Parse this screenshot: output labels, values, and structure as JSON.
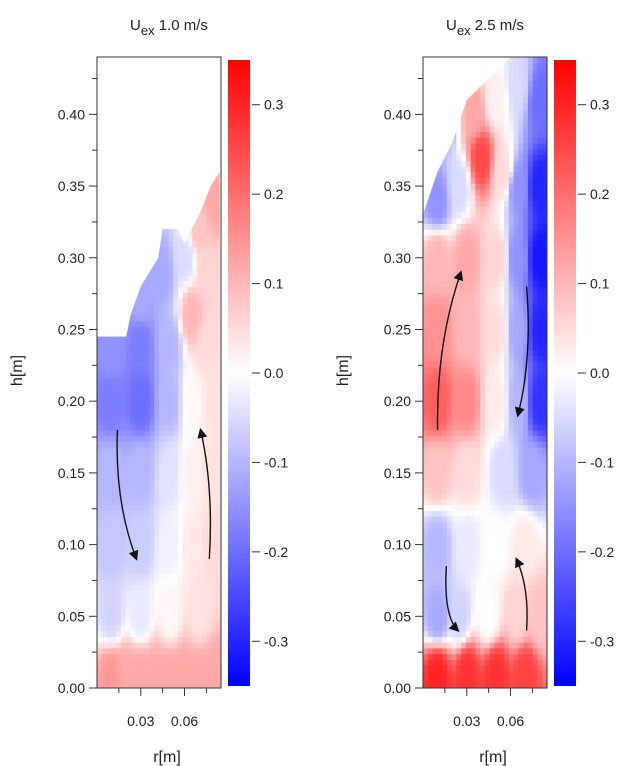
{
  "chart_data": [
    {
      "type": "heatmap",
      "title_main": "U",
      "title_sub": "ex",
      "title_rest": " 1.0 m/s",
      "xlabel": "r[m]",
      "ylabel": "h[m]",
      "xlim": [
        0,
        0.085
      ],
      "ylim": [
        0,
        0.44
      ],
      "xticks": [
        0.03,
        0.06
      ],
      "xtick_labels": [
        "0.03",
        "0.06"
      ],
      "xminor": [
        0.015,
        0.045,
        0.075
      ],
      "yticks": [
        0.0,
        0.05,
        0.1,
        0.15,
        0.2,
        0.25,
        0.3,
        0.35,
        0.4
      ],
      "ytick_labels": [
        "0.00",
        "0.05",
        "0.10",
        "0.15",
        "0.20",
        "0.25",
        "0.30",
        "0.35",
        "0.40"
      ],
      "colorbar": {
        "range": [
          -0.35,
          0.35
        ],
        "ticks": [
          0.3,
          0.2,
          0.1,
          0.0,
          -0.1,
          -0.2,
          -0.3
        ],
        "tick_labels": [
          "0.3",
          "0.2",
          "0.1",
          "0.0",
          "-0.1",
          "-0.2",
          "-0.3"
        ],
        "colors": {
          "negative": "#0000ff",
          "zero": "#ffffff",
          "positive": "#ff0000"
        }
      },
      "field": [
        {
          "r": 0.01,
          "h": 0.01,
          "v": 0.14
        },
        {
          "r": 0.02,
          "h": 0.01,
          "v": 0.12
        },
        {
          "r": 0.03,
          "h": 0.01,
          "v": 0.12
        },
        {
          "r": 0.04,
          "h": 0.01,
          "v": 0.12
        },
        {
          "r": 0.05,
          "h": 0.01,
          "v": 0.12
        },
        {
          "r": 0.06,
          "h": 0.01,
          "v": 0.12
        },
        {
          "r": 0.07,
          "h": 0.01,
          "v": 0.12
        },
        {
          "r": 0.08,
          "h": 0.01,
          "v": 0.12
        },
        {
          "r": 0.01,
          "h": 0.05,
          "v": -0.06
        },
        {
          "r": 0.03,
          "h": 0.05,
          "v": -0.03
        },
        {
          "r": 0.05,
          "h": 0.05,
          "v": 0.01
        },
        {
          "r": 0.07,
          "h": 0.05,
          "v": 0.04
        },
        {
          "r": 0.01,
          "h": 0.1,
          "v": -0.08
        },
        {
          "r": 0.03,
          "h": 0.1,
          "v": -0.07
        },
        {
          "r": 0.05,
          "h": 0.1,
          "v": -0.02
        },
        {
          "r": 0.065,
          "h": 0.1,
          "v": 0.03
        },
        {
          "r": 0.08,
          "h": 0.1,
          "v": 0.05
        },
        {
          "r": 0.01,
          "h": 0.15,
          "v": -0.1
        },
        {
          "r": 0.03,
          "h": 0.15,
          "v": -0.1
        },
        {
          "r": 0.05,
          "h": 0.15,
          "v": -0.04
        },
        {
          "r": 0.065,
          "h": 0.15,
          "v": 0.02
        },
        {
          "r": 0.08,
          "h": 0.15,
          "v": 0.04
        },
        {
          "r": 0.01,
          "h": 0.2,
          "v": -0.18
        },
        {
          "r": 0.03,
          "h": 0.2,
          "v": -0.2
        },
        {
          "r": 0.05,
          "h": 0.2,
          "v": -0.1
        },
        {
          "r": 0.065,
          "h": 0.2,
          "v": 0.01
        },
        {
          "r": 0.08,
          "h": 0.2,
          "v": 0.04
        },
        {
          "r": 0.01,
          "h": 0.235,
          "v": -0.15
        },
        {
          "r": 0.03,
          "h": 0.24,
          "v": -0.18
        },
        {
          "r": 0.05,
          "h": 0.24,
          "v": -0.1
        },
        {
          "r": 0.065,
          "h": 0.26,
          "v": 0.1
        },
        {
          "r": 0.075,
          "h": 0.24,
          "v": 0.05
        },
        {
          "r": 0.03,
          "h": 0.27,
          "v": -0.12
        },
        {
          "r": 0.045,
          "h": 0.29,
          "v": -0.12
        },
        {
          "r": 0.06,
          "h": 0.3,
          "v": -0.05
        },
        {
          "r": 0.075,
          "h": 0.29,
          "v": 0.06
        },
        {
          "r": 0.07,
          "h": 0.32,
          "v": 0.08
        },
        {
          "r": 0.08,
          "h": 0.34,
          "v": 0.12
        }
      ],
      "mask": [
        [
          0,
          0.245
        ],
        [
          0.02,
          0.245
        ],
        [
          0.023,
          0.26
        ],
        [
          0.03,
          0.28
        ],
        [
          0.042,
          0.3
        ],
        [
          0.045,
          0.32
        ],
        [
          0.055,
          0.32
        ],
        [
          0.06,
          0.31
        ],
        [
          0.07,
          0.33
        ],
        [
          0.078,
          0.35
        ],
        [
          0.084,
          0.36
        ],
        [
          0.085,
          0
        ]
      ],
      "arrows": [
        {
          "from": [
            0.014,
            0.18
          ],
          "ctrl": [
            0.012,
            0.13
          ],
          "to": [
            0.027,
            0.09
          ]
        },
        {
          "from": [
            0.077,
            0.09
          ],
          "ctrl": [
            0.08,
            0.14
          ],
          "to": [
            0.071,
            0.18
          ]
        }
      ]
    },
    {
      "type": "heatmap",
      "title_main": "U",
      "title_sub": "ex",
      "title_rest": " 2.5 m/s",
      "xlabel": "r[m]",
      "ylabel": "h[m]",
      "xlim": [
        0,
        0.085
      ],
      "ylim": [
        0,
        0.44
      ],
      "xticks": [
        0.03,
        0.06
      ],
      "xtick_labels": [
        "0.03",
        "0.06"
      ],
      "xminor": [
        0.015,
        0.045,
        0.075
      ],
      "yticks": [
        0.0,
        0.05,
        0.1,
        0.15,
        0.2,
        0.25,
        0.3,
        0.35,
        0.4
      ],
      "ytick_labels": [
        "0.00",
        "0.05",
        "0.10",
        "0.15",
        "0.20",
        "0.25",
        "0.30",
        "0.35",
        "0.40"
      ],
      "colorbar": {
        "range": [
          -0.35,
          0.35
        ],
        "ticks": [
          0.3,
          0.2,
          0.1,
          0.0,
          -0.1,
          -0.2,
          -0.3
        ],
        "tick_labels": [
          "0.3",
          "0.2",
          "0.1",
          "0.0",
          "-0.1",
          "-0.2",
          "-0.3"
        ],
        "colors": {
          "negative": "#0000ff",
          "zero": "#ffffff",
          "positive": "#ff0000"
        }
      },
      "field": [
        {
          "r": 0.01,
          "h": 0.01,
          "v": 0.3
        },
        {
          "r": 0.03,
          "h": 0.01,
          "v": 0.28
        },
        {
          "r": 0.05,
          "h": 0.01,
          "v": 0.28
        },
        {
          "r": 0.07,
          "h": 0.01,
          "v": 0.26
        },
        {
          "r": 0.01,
          "h": 0.05,
          "v": -0.12
        },
        {
          "r": 0.025,
          "h": 0.05,
          "v": -0.06
        },
        {
          "r": 0.045,
          "h": 0.05,
          "v": 0.0
        },
        {
          "r": 0.065,
          "h": 0.05,
          "v": 0.06
        },
        {
          "r": 0.08,
          "h": 0.05,
          "v": 0.08
        },
        {
          "r": 0.01,
          "h": 0.1,
          "v": -0.1
        },
        {
          "r": 0.03,
          "h": 0.1,
          "v": -0.03
        },
        {
          "r": 0.05,
          "h": 0.1,
          "v": 0.0
        },
        {
          "r": 0.07,
          "h": 0.1,
          "v": 0.03
        },
        {
          "r": 0.01,
          "h": 0.15,
          "v": 0.08
        },
        {
          "r": 0.03,
          "h": 0.15,
          "v": 0.05
        },
        {
          "r": 0.055,
          "h": 0.15,
          "v": -0.05
        },
        {
          "r": 0.075,
          "h": 0.15,
          "v": -0.12
        },
        {
          "r": 0.01,
          "h": 0.2,
          "v": 0.22
        },
        {
          "r": 0.03,
          "h": 0.2,
          "v": 0.16
        },
        {
          "r": 0.05,
          "h": 0.2,
          "v": 0.03
        },
        {
          "r": 0.065,
          "h": 0.2,
          "v": -0.1
        },
        {
          "r": 0.08,
          "h": 0.2,
          "v": -0.28
        },
        {
          "r": 0.01,
          "h": 0.25,
          "v": 0.15
        },
        {
          "r": 0.03,
          "h": 0.25,
          "v": 0.1
        },
        {
          "r": 0.05,
          "h": 0.25,
          "v": 0.05
        },
        {
          "r": 0.065,
          "h": 0.25,
          "v": -0.12
        },
        {
          "r": 0.08,
          "h": 0.25,
          "v": -0.3
        },
        {
          "r": 0.01,
          "h": 0.3,
          "v": 0.1
        },
        {
          "r": 0.03,
          "h": 0.3,
          "v": 0.12
        },
        {
          "r": 0.05,
          "h": 0.3,
          "v": 0.06
        },
        {
          "r": 0.065,
          "h": 0.3,
          "v": -0.15
        },
        {
          "r": 0.08,
          "h": 0.3,
          "v": -0.32
        },
        {
          "r": 0.01,
          "h": 0.34,
          "v": -0.15
        },
        {
          "r": 0.025,
          "h": 0.35,
          "v": -0.05
        },
        {
          "r": 0.04,
          "h": 0.37,
          "v": 0.25
        },
        {
          "r": 0.055,
          "h": 0.36,
          "v": 0.05
        },
        {
          "r": 0.065,
          "h": 0.35,
          "v": -0.15
        },
        {
          "r": 0.08,
          "h": 0.35,
          "v": -0.3
        },
        {
          "r": 0.015,
          "h": 0.4,
          "v": -0.12
        },
        {
          "r": 0.035,
          "h": 0.4,
          "v": 0.12
        },
        {
          "r": 0.05,
          "h": 0.41,
          "v": 0.02
        },
        {
          "r": 0.065,
          "h": 0.42,
          "v": -0.05
        },
        {
          "r": 0.08,
          "h": 0.41,
          "v": -0.2
        }
      ],
      "mask": [
        [
          0,
          0.33
        ],
        [
          0.01,
          0.36
        ],
        [
          0.02,
          0.38
        ],
        [
          0.03,
          0.41
        ],
        [
          0.04,
          0.42
        ],
        [
          0.05,
          0.43
        ],
        [
          0.06,
          0.44
        ],
        [
          0.085,
          0.44
        ],
        [
          0.085,
          0
        ]
      ],
      "arrows": [
        {
          "from": [
            0.01,
            0.18
          ],
          "ctrl": [
            0.009,
            0.24
          ],
          "to": [
            0.026,
            0.29
          ]
        },
        {
          "from": [
            0.071,
            0.28
          ],
          "ctrl": [
            0.075,
            0.23
          ],
          "to": [
            0.065,
            0.19
          ]
        },
        {
          "from": [
            0.016,
            0.085
          ],
          "ctrl": [
            0.014,
            0.05
          ],
          "to": [
            0.024,
            0.04
          ]
        },
        {
          "from": [
            0.071,
            0.04
          ],
          "ctrl": [
            0.073,
            0.07
          ],
          "to": [
            0.064,
            0.09
          ]
        }
      ]
    }
  ]
}
